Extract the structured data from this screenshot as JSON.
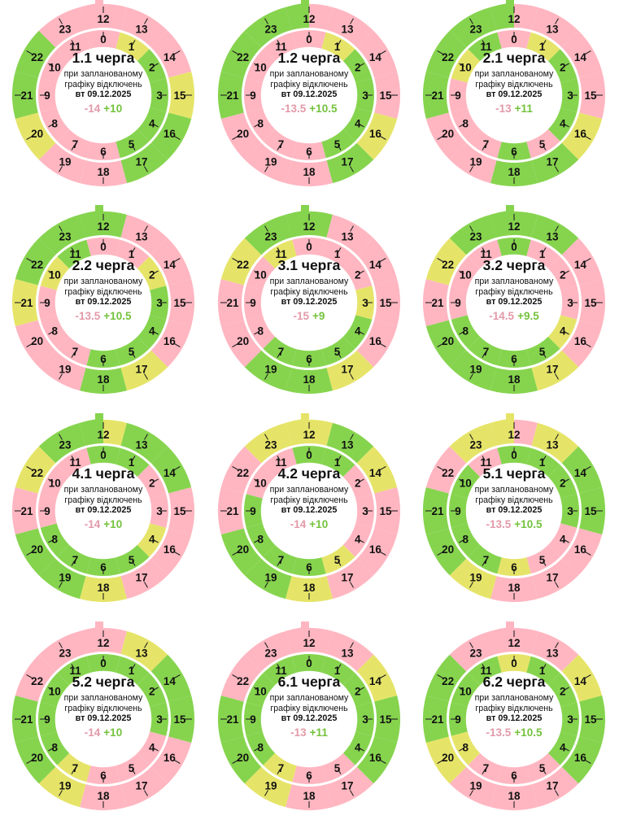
{
  "colors": {
    "off": "#ffb6c1",
    "on": "#86d44e",
    "maybe": "#e6e468",
    "text": "#111111"
  },
  "subtitle_line1": "при запланованому",
  "subtitle_line2": "графіку відключень",
  "date": "вт 09.12.2025",
  "hour_labels": [
    "0",
    "1",
    "2",
    "3",
    "4",
    "5",
    "6",
    "7",
    "8",
    "9",
    "10",
    "11",
    "12",
    "13",
    "14",
    "15",
    "16",
    "17",
    "18",
    "19",
    "20",
    "21",
    "22",
    "23"
  ],
  "chart_data": [
    {
      "type": "radial-schedule",
      "title": "1.1 черга",
      "balance_off": "-14",
      "balance_on": "+10",
      "legend": {
        "off": "pink",
        "on": "green",
        "maybe": "yellow"
      },
      "hours": [
        "off",
        "maybe",
        "on",
        "on",
        "on",
        "on",
        "off",
        "off",
        "off",
        "off",
        "off",
        "off",
        "off",
        "off",
        "off",
        "maybe",
        "on",
        "on",
        "off",
        "off",
        "maybe",
        "on",
        "on",
        "off"
      ]
    },
    {
      "type": "radial-schedule",
      "title": "1.2 черга",
      "balance_off": "-13.5",
      "balance_on": "+10.5",
      "hours": [
        "off",
        "maybe",
        "on",
        "on",
        "on",
        "on",
        "off",
        "off",
        "off",
        "off",
        "off",
        "off",
        "off",
        "off",
        "off",
        "off",
        "maybe",
        "on",
        "off",
        "off",
        "off",
        "on",
        "on",
        "on"
      ]
    },
    {
      "type": "radial-schedule",
      "title": "2.1 черга",
      "balance_off": "-13",
      "balance_on": "+11",
      "hours": [
        "off",
        "maybe",
        "on",
        "on",
        "on",
        "off",
        "on",
        "off",
        "off",
        "off",
        "maybe",
        "on",
        "off",
        "off",
        "off",
        "off",
        "maybe",
        "on",
        "on",
        "off",
        "off",
        "on",
        "on",
        "on"
      ]
    },
    {
      "type": "radial-schedule",
      "title": "2.2 черга",
      "balance_off": "-13.5",
      "balance_on": "+10.5",
      "hours": [
        "off",
        "off",
        "maybe",
        "on",
        "on",
        "on",
        "on",
        "off",
        "off",
        "off",
        "maybe",
        "on",
        "on",
        "off",
        "off",
        "off",
        "off",
        "maybe",
        "on",
        "off",
        "off",
        "maybe",
        "on",
        "on"
      ]
    },
    {
      "type": "radial-schedule",
      "title": "3.1 черга",
      "balance_off": "-15",
      "balance_on": "+9",
      "hours": [
        "off",
        "off",
        "off",
        "maybe",
        "on",
        "on",
        "on",
        "on",
        "off",
        "off",
        "off",
        "maybe",
        "on",
        "off",
        "off",
        "off",
        "off",
        "maybe",
        "on",
        "on",
        "off",
        "off",
        "maybe",
        "on"
      ]
    },
    {
      "type": "radial-schedule",
      "title": "3.2 черга",
      "balance_off": "-14.5",
      "balance_on": "+9.5",
      "hours": [
        "on",
        "off",
        "off",
        "off",
        "maybe",
        "on",
        "on",
        "on",
        "on",
        "off",
        "off",
        "off",
        "on",
        "on",
        "off",
        "off",
        "off",
        "maybe",
        "on",
        "on",
        "on",
        "off",
        "maybe",
        "on"
      ]
    },
    {
      "type": "radial-schedule",
      "title": "4.1 черга",
      "balance_off": "-14",
      "balance_on": "+10",
      "hours": [
        "on",
        "on",
        "off",
        "off",
        "maybe",
        "on",
        "on",
        "on",
        "on",
        "off",
        "off",
        "off",
        "maybe",
        "on",
        "on",
        "off",
        "off",
        "off",
        "maybe",
        "on",
        "on",
        "off",
        "maybe",
        "on"
      ]
    },
    {
      "type": "radial-schedule",
      "title": "4.2 черга",
      "balance_off": "-14",
      "balance_on": "+10",
      "hours": [
        "on",
        "on",
        "off",
        "off",
        "off",
        "maybe",
        "on",
        "on",
        "on",
        "on",
        "off",
        "off",
        "maybe",
        "on",
        "maybe",
        "off",
        "off",
        "off",
        "maybe",
        "on",
        "on",
        "off",
        "off",
        "maybe"
      ]
    },
    {
      "type": "radial-schedule",
      "title": "5.1 черга",
      "balance_off": "-13.5",
      "balance_on": "+10.5",
      "hours": [
        "on",
        "on",
        "on",
        "on",
        "off",
        "off",
        "maybe",
        "on",
        "on",
        "on",
        "on",
        "off",
        "off",
        "maybe",
        "on",
        "on",
        "off",
        "off",
        "off",
        "maybe",
        "on",
        "on",
        "off",
        "maybe"
      ]
    },
    {
      "type": "radial-schedule",
      "title": "5.2 черга",
      "balance_off": "-14",
      "balance_on": "+10",
      "hours": [
        "on",
        "on",
        "on",
        "on",
        "off",
        "off",
        "off",
        "maybe",
        "on",
        "on",
        "on",
        "on",
        "off",
        "maybe",
        "on",
        "on",
        "off",
        "off",
        "off",
        "maybe",
        "on",
        "on",
        "off",
        "off"
      ]
    },
    {
      "type": "radial-schedule",
      "title": "6.1 черга",
      "balance_off": "-13",
      "balance_on": "+11",
      "hours": [
        "on",
        "on",
        "on",
        "on",
        "on",
        "off",
        "off",
        "maybe",
        "on",
        "on",
        "on",
        "on",
        "off",
        "off",
        "maybe",
        "on",
        "on",
        "off",
        "off",
        "maybe",
        "on",
        "on",
        "off",
        "off"
      ]
    },
    {
      "type": "radial-schedule",
      "title": "6.2 черга",
      "balance_off": "-13.5",
      "balance_on": "+10.5",
      "hours": [
        "maybe",
        "on",
        "on",
        "on",
        "on",
        "off",
        "off",
        "off",
        "maybe",
        "on",
        "on",
        "on",
        "off",
        "off",
        "maybe",
        "on",
        "on",
        "off",
        "off",
        "off",
        "maybe",
        "on",
        "on",
        "off"
      ]
    }
  ]
}
